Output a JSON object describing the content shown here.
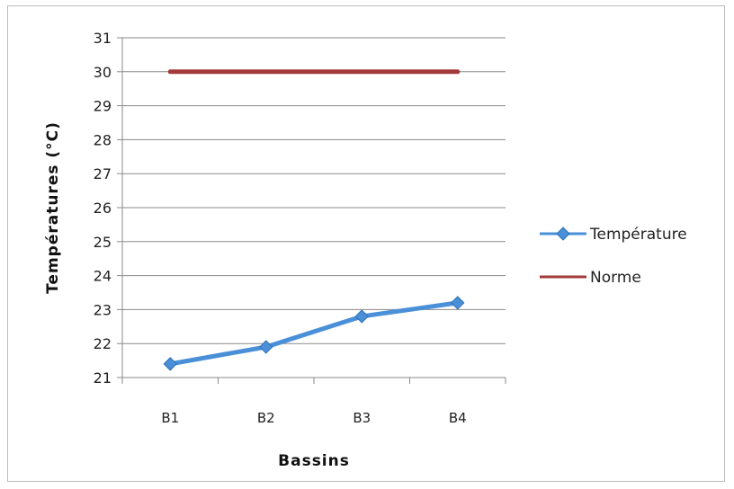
{
  "chart_data": {
    "type": "line",
    "categories": [
      "B1",
      "B2",
      "B3",
      "B4"
    ],
    "series": [
      {
        "name": "Température",
        "values": [
          21.4,
          21.9,
          22.8,
          23.2
        ],
        "color": "#4a90d9",
        "marker": "diamond"
      },
      {
        "name": "Norme",
        "values": [
          30,
          30,
          30,
          30
        ],
        "color": "#a33a3a",
        "marker": "none"
      }
    ],
    "title": "",
    "xlabel": "Bassins",
    "ylabel": "Températures (°C)",
    "ylim": [
      21,
      31
    ],
    "yticks": [
      21,
      22,
      23,
      24,
      25,
      26,
      27,
      28,
      29,
      30,
      31
    ],
    "grid": true,
    "legend": "right"
  }
}
